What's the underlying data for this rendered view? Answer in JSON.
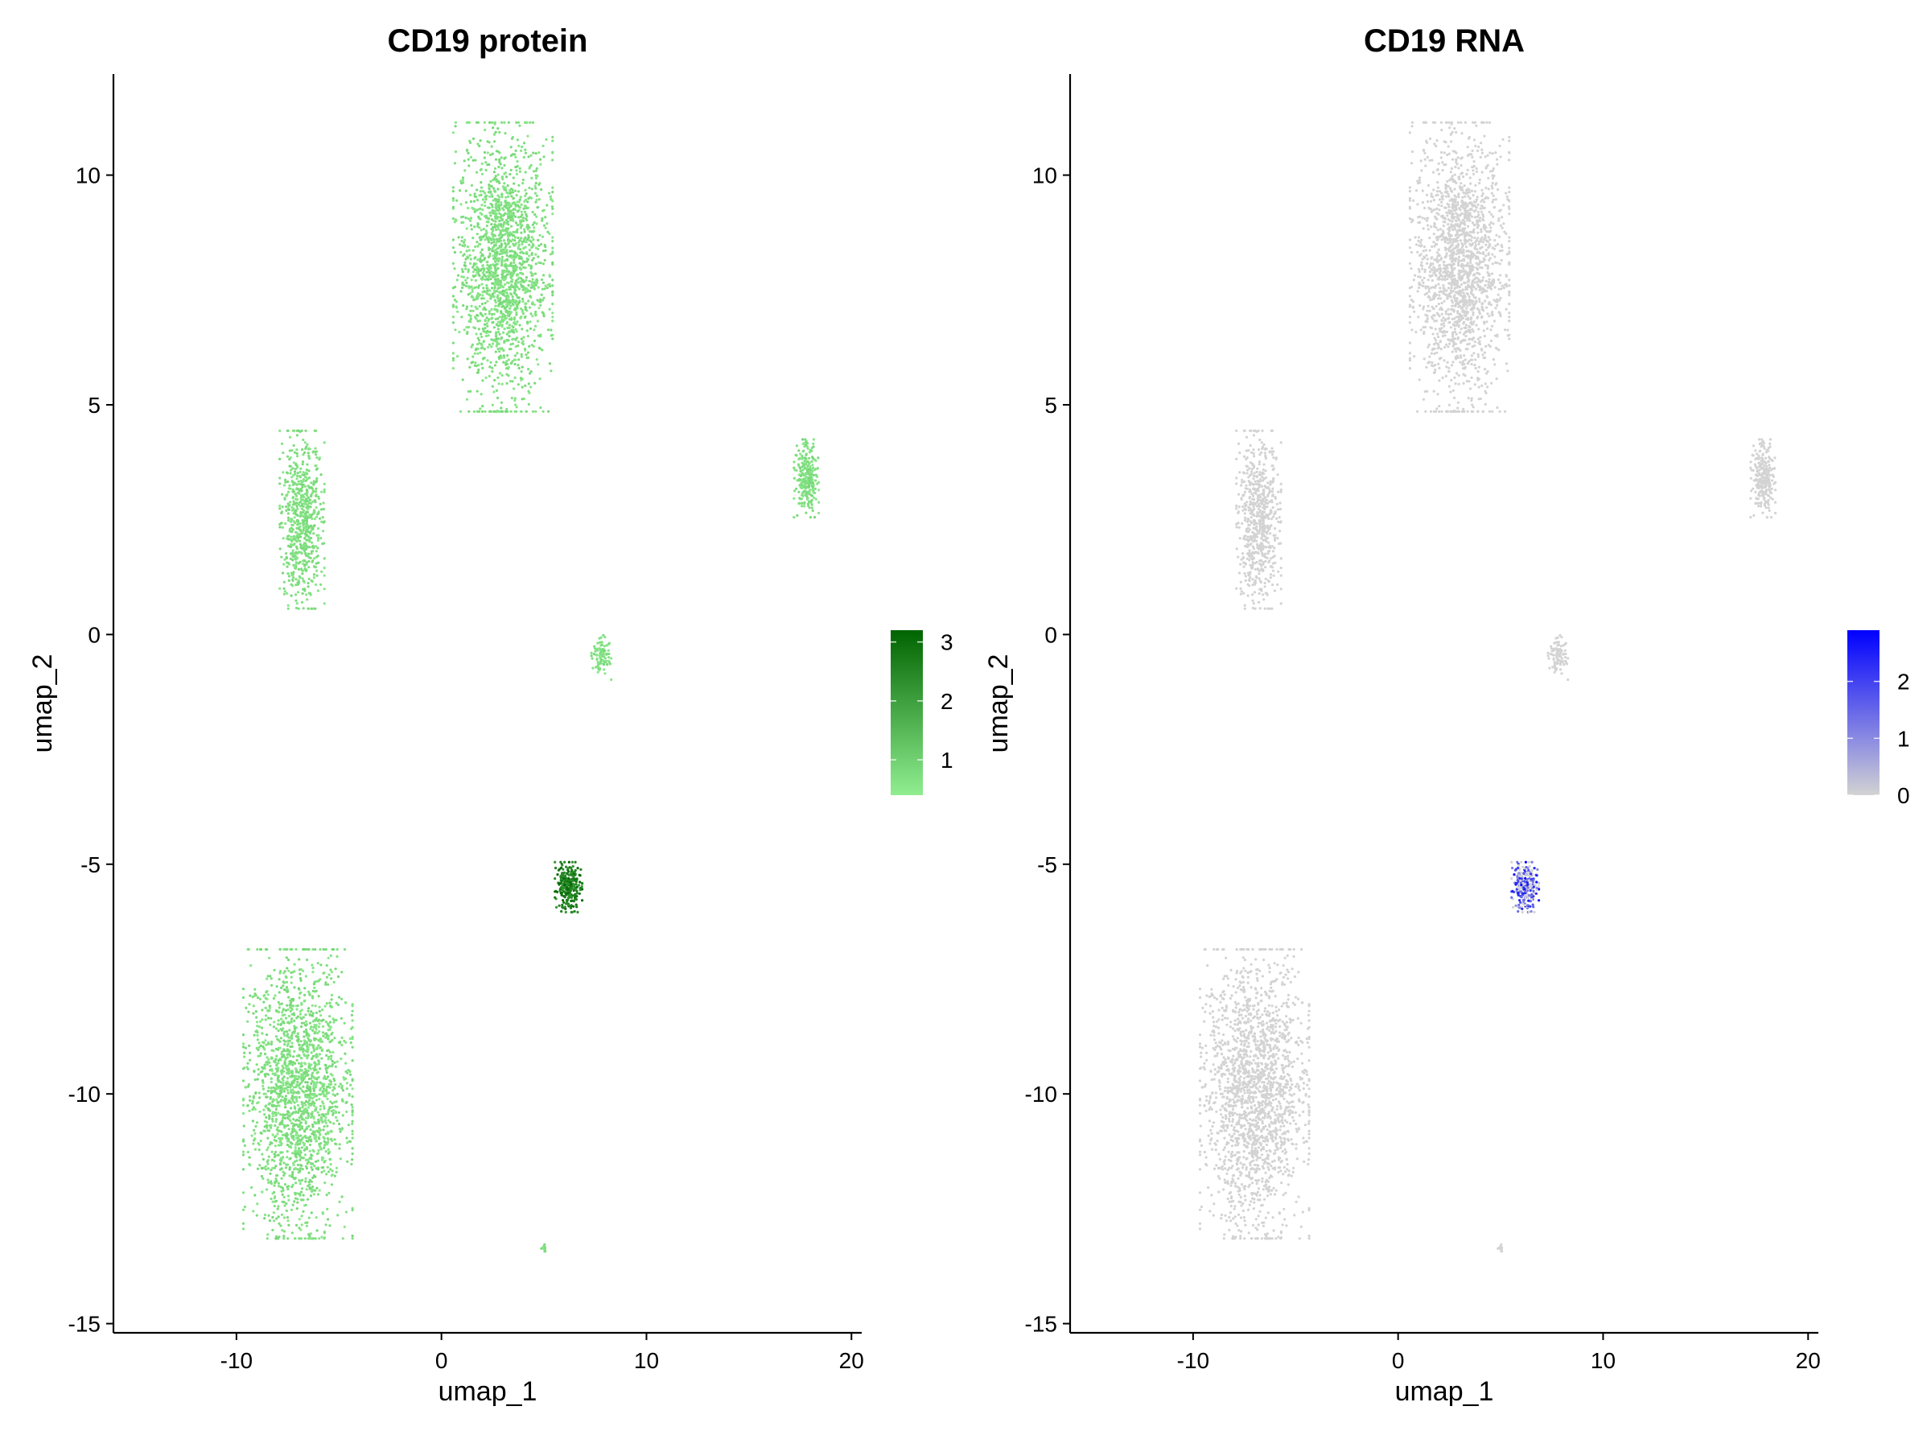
{
  "chart_data": [
    {
      "type": "scatter",
      "title": "CD19 protein",
      "xlabel": "umap_1",
      "ylabel": "umap_2",
      "xlim": [
        -16,
        20.5
      ],
      "ylim": [
        -15.2,
        12.2
      ],
      "x_ticks": [
        -10,
        0,
        10,
        20
      ],
      "y_ticks": [
        -15,
        -10,
        -5,
        0,
        5,
        10
      ],
      "grid": false,
      "legend": {
        "position": "right",
        "type": "colorbar",
        "ticks": [
          1,
          2,
          3
        ],
        "range": [
          0.4,
          3.2
        ],
        "low_color": "#90EE90",
        "high_color": "#006400"
      },
      "series": [
        {
          "cluster": "upper large cluster",
          "center": [
            3,
            8
          ],
          "spread": [
            2.0,
            2.6
          ],
          "values_range": [
            0.5,
            0.9
          ]
        },
        {
          "cluster": "left mid cluster",
          "center": [
            -6.8,
            2.5
          ],
          "spread": [
            0.9,
            1.6
          ],
          "values_range": [
            0.5,
            0.9
          ]
        },
        {
          "cluster": "lower left large cluster",
          "center": [
            -7,
            -10
          ],
          "spread": [
            2.2,
            2.6
          ],
          "values_range": [
            0.5,
            0.9
          ]
        },
        {
          "cluster": "right mid cluster",
          "center": [
            17.8,
            3.4
          ],
          "spread": [
            0.5,
            0.7
          ],
          "values_range": [
            0.5,
            0.9
          ]
        },
        {
          "cluster": "small cluster near 7.8,-0.5",
          "center": [
            7.8,
            -0.5
          ],
          "spread": [
            0.4,
            0.4
          ],
          "values_range": [
            0.5,
            0.9
          ]
        },
        {
          "cluster": "B-cell cluster",
          "center": [
            6.2,
            -5.5
          ],
          "spread": [
            0.55,
            0.45
          ],
          "values_range": [
            2.2,
            3.2
          ]
        },
        {
          "cluster": "tiny cluster",
          "center": [
            5,
            -13.4
          ],
          "spread": [
            0.15,
            0.1
          ],
          "values_range": [
            0.5,
            0.9
          ]
        }
      ]
    },
    {
      "type": "scatter",
      "title": "CD19 RNA",
      "xlabel": "umap_1",
      "ylabel": "umap_2",
      "xlim": [
        -16,
        20.5
      ],
      "ylim": [
        -15.2,
        12.2
      ],
      "x_ticks": [
        -10,
        0,
        10,
        20
      ],
      "y_ticks": [
        -15,
        -10,
        -5,
        0,
        5,
        10
      ],
      "grid": false,
      "legend": {
        "position": "right",
        "type": "colorbar",
        "ticks": [
          0,
          1,
          2
        ],
        "range": [
          0,
          2.9
        ],
        "low_color": "#D3D3D3",
        "high_color": "#0000FF"
      },
      "series": [
        {
          "cluster": "upper large cluster",
          "center": [
            3,
            8
          ],
          "spread": [
            2.0,
            2.6
          ],
          "values_range": [
            0,
            0
          ]
        },
        {
          "cluster": "left mid cluster",
          "center": [
            -6.8,
            2.5
          ],
          "spread": [
            0.9,
            1.6
          ],
          "values_range": [
            0,
            0
          ]
        },
        {
          "cluster": "lower left large cluster",
          "center": [
            -7,
            -10
          ],
          "spread": [
            2.2,
            2.6
          ],
          "values_range": [
            0,
            0
          ]
        },
        {
          "cluster": "right mid cluster",
          "center": [
            17.8,
            3.4
          ],
          "spread": [
            0.5,
            0.7
          ],
          "values_range": [
            0,
            0
          ]
        },
        {
          "cluster": "small cluster near 7.8,-0.5",
          "center": [
            7.8,
            -0.5
          ],
          "spread": [
            0.4,
            0.4
          ],
          "values_range": [
            0,
            0
          ]
        },
        {
          "cluster": "B-cell cluster",
          "center": [
            6.2,
            -5.5
          ],
          "spread": [
            0.55,
            0.45
          ],
          "values_range": [
            0,
            2.9
          ]
        },
        {
          "cluster": "tiny cluster",
          "center": [
            5,
            -13.4
          ],
          "spread": [
            0.15,
            0.1
          ],
          "values_range": [
            0,
            0
          ]
        }
      ]
    }
  ],
  "panels": [
    {
      "title": "CD19 protein",
      "xlabel": "umap_1",
      "ylabel": "umap_2",
      "x_tick_labels": [
        "-10",
        "0",
        "10",
        "20"
      ],
      "y_tick_labels": [
        "-15",
        "-10",
        "-5",
        "0",
        "5",
        "10"
      ],
      "legend_labels": [
        "1",
        "2",
        "3"
      ]
    },
    {
      "title": "CD19 RNA",
      "xlabel": "umap_1",
      "ylabel": "umap_2",
      "x_tick_labels": [
        "-10",
        "0",
        "10",
        "20"
      ],
      "y_tick_labels": [
        "-15",
        "-10",
        "-5",
        "0",
        "5",
        "10"
      ],
      "legend_labels": [
        "0",
        "1",
        "2"
      ]
    }
  ]
}
